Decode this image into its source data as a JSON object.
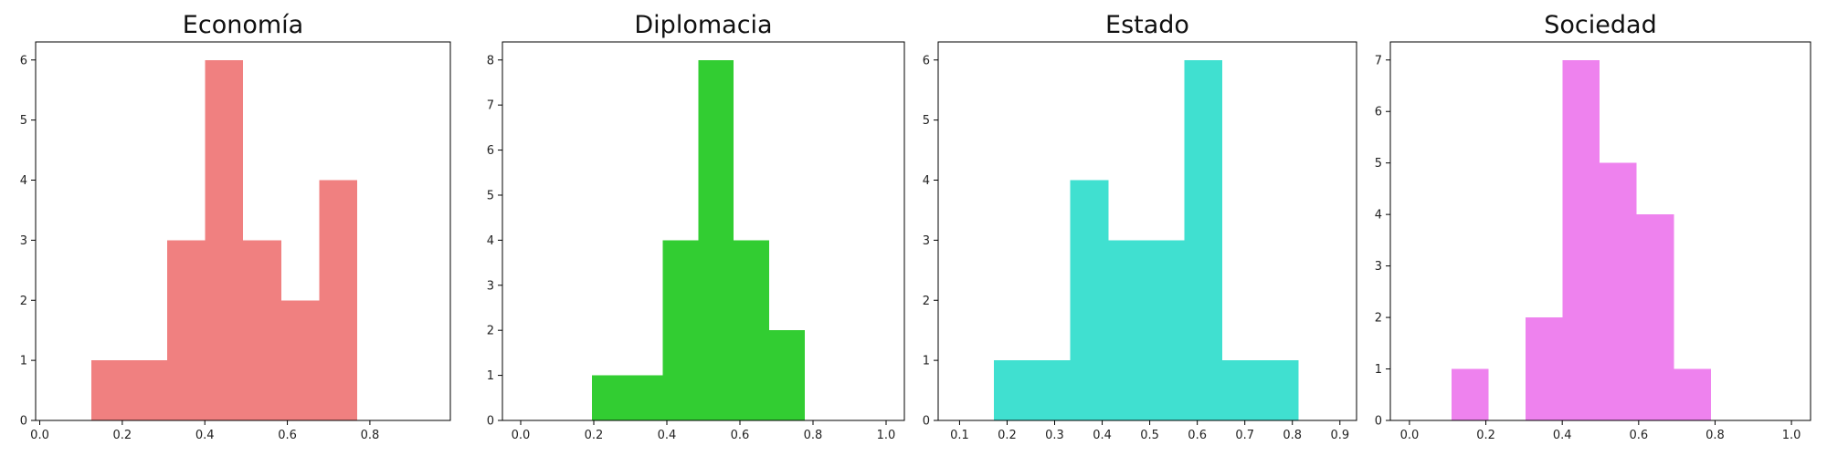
{
  "chart_data": [
    {
      "type": "bar",
      "title": "Economía",
      "color": "#F08080",
      "xlim": [
        -0.01,
        0.995
      ],
      "ylim": [
        0,
        6.3
      ],
      "xticks": [
        0.0,
        0.2,
        0.4,
        0.6,
        0.8
      ],
      "xtick_labels": [
        "0.0",
        "0.2",
        "0.4",
        "0.6",
        "0.8"
      ],
      "yticks": [
        0,
        1,
        2,
        3,
        4,
        5,
        6
      ],
      "ytick_labels": [
        "0",
        "1",
        "2",
        "3",
        "4",
        "5",
        "6"
      ],
      "bins": [
        {
          "x0": 0.125,
          "x1": 0.217,
          "count": 1
        },
        {
          "x0": 0.217,
          "x1": 0.309,
          "count": 1
        },
        {
          "x0": 0.309,
          "x1": 0.401,
          "count": 3
        },
        {
          "x0": 0.401,
          "x1": 0.493,
          "count": 6
        },
        {
          "x0": 0.493,
          "x1": 0.585,
          "count": 3
        },
        {
          "x0": 0.585,
          "x1": 0.677,
          "count": 2
        },
        {
          "x0": 0.677,
          "x1": 0.769,
          "count": 4
        }
      ]
    },
    {
      "type": "bar",
      "title": "Diplomacia",
      "color": "#32CD32",
      "xlim": [
        -0.05,
        1.05
      ],
      "ylim": [
        0,
        8.4
      ],
      "xticks": [
        0.0,
        0.2,
        0.4,
        0.6,
        0.8,
        1.0
      ],
      "xtick_labels": [
        "0.0",
        "0.2",
        "0.4",
        "0.6",
        "0.8",
        "1.0"
      ],
      "yticks": [
        0,
        1,
        2,
        3,
        4,
        5,
        6,
        7,
        8
      ],
      "ytick_labels": [
        "0",
        "1",
        "2",
        "3",
        "4",
        "5",
        "6",
        "7",
        "8"
      ],
      "bins": [
        {
          "x0": 0.195,
          "x1": 0.292,
          "count": 1
        },
        {
          "x0": 0.292,
          "x1": 0.389,
          "count": 1
        },
        {
          "x0": 0.389,
          "x1": 0.486,
          "count": 4
        },
        {
          "x0": 0.486,
          "x1": 0.583,
          "count": 8
        },
        {
          "x0": 0.583,
          "x1": 0.68,
          "count": 4
        },
        {
          "x0": 0.68,
          "x1": 0.777,
          "count": 2
        }
      ]
    },
    {
      "type": "bar",
      "title": "Estado",
      "color": "#40E0D0",
      "xlim": [
        0.055,
        0.935
      ],
      "ylim": [
        0,
        6.3
      ],
      "xticks": [
        0.1,
        0.2,
        0.3,
        0.4,
        0.5,
        0.6,
        0.7,
        0.8,
        0.9
      ],
      "xtick_labels": [
        "0.1",
        "0.2",
        "0.3",
        "0.4",
        "0.5",
        "0.6",
        "0.7",
        "0.8",
        "0.9"
      ],
      "yticks": [
        0,
        1,
        2,
        3,
        4,
        5,
        6
      ],
      "ytick_labels": [
        "0",
        "1",
        "2",
        "3",
        "4",
        "5",
        "6"
      ],
      "bins": [
        {
          "x0": 0.172,
          "x1": 0.252,
          "count": 1
        },
        {
          "x0": 0.252,
          "x1": 0.333,
          "count": 1
        },
        {
          "x0": 0.333,
          "x1": 0.413,
          "count": 4
        },
        {
          "x0": 0.413,
          "x1": 0.493,
          "count": 3
        },
        {
          "x0": 0.493,
          "x1": 0.573,
          "count": 3
        },
        {
          "x0": 0.573,
          "x1": 0.653,
          "count": 6
        },
        {
          "x0": 0.653,
          "x1": 0.733,
          "count": 1
        },
        {
          "x0": 0.733,
          "x1": 0.813,
          "count": 1
        }
      ]
    },
    {
      "type": "bar",
      "title": "Sociedad",
      "color": "#EE82EE",
      "xlim": [
        -0.05,
        1.05
      ],
      "ylim": [
        0,
        7.35
      ],
      "xticks": [
        0.0,
        0.2,
        0.4,
        0.6,
        0.8,
        1.0
      ],
      "xtick_labels": [
        "0.0",
        "0.2",
        "0.4",
        "0.6",
        "0.8",
        "1.0"
      ],
      "yticks": [
        0,
        1,
        2,
        3,
        4,
        5,
        6,
        7
      ],
      "ytick_labels": [
        "0",
        "1",
        "2",
        "3",
        "4",
        "5",
        "6",
        "7"
      ],
      "bins": [
        {
          "x0": 0.11,
          "x1": 0.207,
          "count": 1
        },
        {
          "x0": 0.207,
          "x1": 0.304,
          "count": 0
        },
        {
          "x0": 0.304,
          "x1": 0.401,
          "count": 2
        },
        {
          "x0": 0.401,
          "x1": 0.498,
          "count": 7
        },
        {
          "x0": 0.498,
          "x1": 0.595,
          "count": 5
        },
        {
          "x0": 0.595,
          "x1": 0.692,
          "count": 4
        },
        {
          "x0": 0.692,
          "x1": 0.789,
          "count": 1
        }
      ]
    }
  ]
}
